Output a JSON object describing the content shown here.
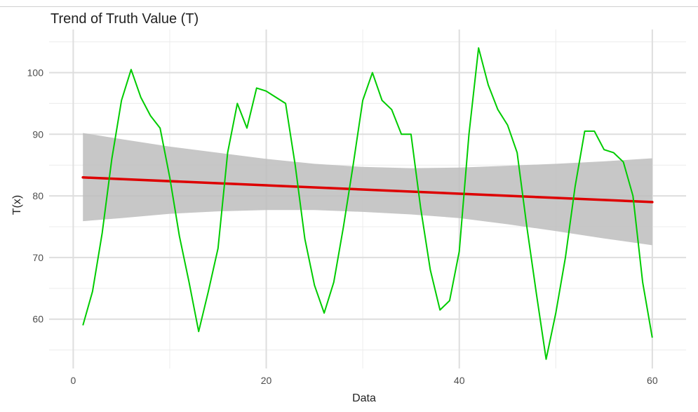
{
  "chart_data": {
    "type": "line",
    "title": "Trend of Truth Value (T)",
    "xlabel": "Data",
    "ylabel": "T(x)",
    "xlim": [
      -2.5,
      63.5
    ],
    "ylim": [
      52.0,
      107.0
    ],
    "x_ticks": [
      0,
      20,
      40,
      60
    ],
    "y_ticks": [
      60,
      70,
      80,
      90,
      100
    ],
    "grid": true,
    "legend": "none",
    "colors": {
      "series": "#00cc00",
      "trend": "#dd0000",
      "band": "#bdbdbd",
      "grid_major": "#dedede",
      "grid_minor": "#ececec"
    },
    "series": [
      {
        "x": [
          1,
          2,
          3,
          4,
          5,
          6,
          7,
          8,
          9,
          10,
          11,
          12,
          13,
          14,
          15,
          16,
          17,
          18,
          19,
          20,
          21,
          22,
          23,
          24,
          25,
          26,
          27,
          28,
          29,
          30,
          31,
          32,
          33,
          34,
          35,
          36,
          37,
          38,
          39,
          40,
          41,
          42,
          43,
          44,
          45,
          46,
          47,
          48,
          49,
          50,
          51,
          52,
          53,
          54,
          55,
          56,
          57,
          58,
          59,
          60
        ],
        "values": [
          59,
          64.5,
          74,
          86,
          95.5,
          100.5,
          96,
          93,
          91,
          83,
          73.5,
          66,
          58,
          64.5,
          71.5,
          87,
          95,
          91,
          97.5,
          97,
          96,
          95,
          85,
          73,
          65.5,
          61,
          66,
          75,
          85,
          95.5,
          100,
          95.5,
          94,
          90,
          90,
          78,
          68,
          61.5,
          63,
          71,
          90,
          104,
          98,
          94,
          91.5,
          87,
          75,
          64,
          53.5,
          61,
          70,
          81.5,
          90.5,
          90.5,
          87.5,
          87,
          85.5,
          80,
          66,
          57
        ]
      }
    ],
    "trend": {
      "x": [
        1,
        60
      ],
      "values": [
        83.0,
        79.0
      ]
    },
    "band": {
      "x": [
        1,
        5,
        10,
        15,
        20,
        25,
        30,
        35,
        40,
        45,
        50,
        55,
        60
      ],
      "upper": [
        90.2,
        89.2,
        88.0,
        87.0,
        86.0,
        85.2,
        84.7,
        84.5,
        84.6,
        84.9,
        85.2,
        85.6,
        86.1
      ],
      "lower": [
        75.9,
        76.4,
        77.1,
        77.5,
        77.7,
        77.7,
        77.4,
        77.0,
        76.4,
        75.4,
        74.3,
        73.1,
        72.0
      ]
    }
  }
}
